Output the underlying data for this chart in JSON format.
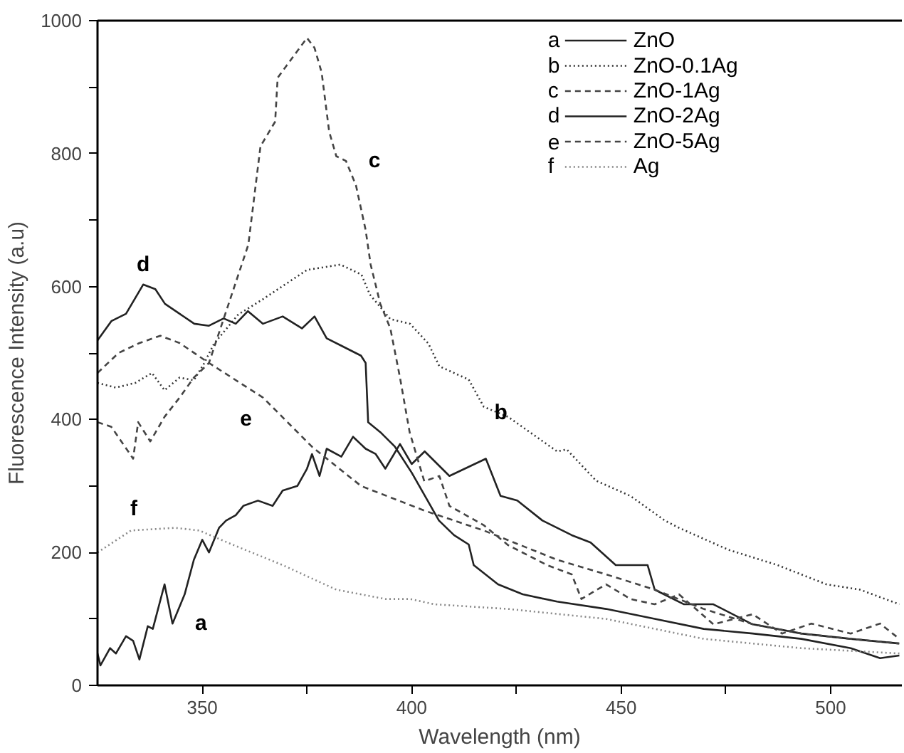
{
  "chart_data": {
    "type": "line",
    "xlabel": "Wavelength (nm)",
    "ylabel": "Fluorescence Intensity (a.u)",
    "xlim": [
      325,
      517
    ],
    "ylim": [
      0,
      1000
    ],
    "xticks": [
      350,
      {
        "value": 375,
        "label": null
      },
      400,
      {
        "value": 425,
        "label": null
      },
      450,
      {
        "value": 475,
        "label": null
      },
      500
    ],
    "yticks": [
      0,
      {
        "value": 100,
        "label": null
      },
      200,
      {
        "value": 300,
        "label": null
      },
      400,
      {
        "value": 500,
        "label": null
      },
      600,
      {
        "value": 700,
        "label": null
      },
      800,
      {
        "value": 900,
        "label": null
      },
      1000
    ],
    "grid": false,
    "legend": "top right",
    "marker": "none",
    "series": [
      {
        "name": "ZnO",
        "color": "#222222",
        "line_style": "solid",
        "x": [
          325,
          325.7,
          328,
          329.4,
          331.8,
          333.5,
          335,
          337,
          338.2,
          341,
          342.9,
          345.8,
          348,
          350,
          351.6,
          354,
          355.7,
          358,
          359.8,
          363.3,
          366.8,
          369.2,
          372.7,
          375,
          376.2,
          378,
          379.7,
          383.2,
          386,
          389,
          391.4,
          393.7,
          397.2,
          400,
          403.1,
          409,
          417.7,
          421.2,
          425.2,
          431.2,
          438.2,
          442.7,
          448.7,
          456.3,
          458,
          465,
          472,
          481.3,
          493,
          504.8,
          516.3
        ],
        "values": [
          48,
          30,
          56,
          48,
          74,
          67,
          39,
          89,
          85,
          152,
          93,
          137,
          189,
          219,
          200,
          237,
          248,
          256,
          270,
          278,
          270,
          293,
          300,
          326,
          348,
          315,
          356,
          344,
          374,
          356,
          348,
          326,
          363,
          333,
          352,
          315,
          341,
          285,
          278,
          248,
          226,
          215,
          181,
          181,
          144,
          122,
          122,
          92,
          78,
          70,
          63
        ]
      },
      {
        "name": "ZnO-0.1Ag",
        "color": "#333333",
        "line_style": "dotted",
        "x": [
          325,
          329.4,
          334,
          338,
          341,
          344.6,
          348,
          350.5,
          352.8,
          358.6,
          364.5,
          375,
          383,
          388,
          390,
          394.9,
          399.6,
          404,
          406.6,
          413.6,
          417.2,
          423,
          434.7,
          437,
          444,
          452.2,
          460.4,
          463.8,
          475.6,
          487.3,
          499,
          507,
          516.4
        ],
        "values": [
          455,
          448,
          455,
          470,
          444,
          463,
          459,
          485,
          514,
          558,
          581,
          625,
          633,
          618,
          588,
          551,
          544,
          514,
          480,
          460,
          419,
          404,
          352,
          355,
          308,
          285,
          248,
          237,
          204,
          181,
          152,
          144,
          122
        ]
      },
      {
        "name": "ZnO-1Ag",
        "color": "#444444",
        "line_style": "dashed",
        "x": [
          325,
          328.3,
          333.5,
          334.7,
          337.6,
          341,
          344.6,
          348,
          351.6,
          356.3,
          361,
          363.9,
          367.4,
          368,
          371.5,
          375,
          376.8,
          378.5,
          380.3,
          382,
          384.3,
          386.7,
          389,
          390.2,
          392.5,
          394.9,
          397.2,
          399.5,
          403,
          406.6,
          409,
          417.2,
          423,
          432.3,
          438.2,
          440.5,
          446.4,
          452.2,
          458,
          463.8,
          472,
          481.4,
          488.4,
          495.4,
          504.8,
          511.8,
          516.4
        ],
        "values": [
          396,
          389,
          341,
          396,
          367,
          404,
          433,
          463,
          485,
          574,
          663,
          811,
          848,
          914,
          944,
          974,
          959,
          922,
          833,
          796,
          789,
          752,
          685,
          633,
          574,
          537,
          463,
          381,
          307,
          315,
          270,
          241,
          211,
          181,
          167,
          130,
          152,
          130,
          122,
          137,
          92,
          107,
          78,
          93,
          78,
          93,
          70
        ]
      },
      {
        "name": "ZnO-2Ag",
        "color": "#222222",
        "line_style": "solid",
        "x": [
          325,
          328.3,
          331.8,
          335.9,
          338.8,
          341.1,
          344.6,
          348.1,
          351.6,
          355.1,
          358,
          360.9,
          364.5,
          369.2,
          373.8,
          376.8,
          379.7,
          383.2,
          387.9,
          389,
          389.6,
          392.5,
          396,
          400,
          406.5,
          410.1,
          413.6,
          414.8,
          420.6,
          426.5,
          434.7,
          446.4,
          458,
          469.7,
          481.4,
          493,
          504.8,
          511.8,
          516.4
        ],
        "values": [
          519,
          548,
          559,
          603,
          596,
          574,
          559,
          544,
          541,
          552,
          544,
          563,
          544,
          555,
          537,
          555,
          522,
          511,
          496,
          485,
          396,
          381,
          359,
          320,
          248,
          226,
          212,
          181,
          152,
          137,
          126,
          115,
          100,
          85,
          78,
          70,
          56,
          41,
          45
        ]
      },
      {
        "name": "ZnO-5Ag",
        "color": "#444444",
        "line_style": "dashed",
        "x": [
          325,
          330,
          335,
          340,
          344.6,
          351.6,
          364.5,
          376.2,
          387.9,
          403,
          417.2,
          434.7,
          446.4,
          458,
          469.7,
          481.4,
          493,
          504.8,
          516.4
        ],
        "values": [
          470,
          500,
          515,
          526,
          515,
          485,
          433,
          359,
          300,
          263,
          233,
          189,
          167,
          144,
          115,
          92,
          78,
          70,
          63
        ]
      },
      {
        "name": "Ag",
        "color": "#888888",
        "line_style": "dotted",
        "x": [
          325,
          333,
          343.5,
          349.3,
          357.5,
          369.2,
          382,
          393.7,
          399.6,
          405.4,
          423,
          446.4,
          469.7,
          493,
          516.4
        ],
        "values": [
          200,
          233,
          237,
          233,
          211,
          181,
          144,
          130,
          130,
          122,
          115,
          100,
          70,
          56,
          48
        ]
      }
    ],
    "annotations": [
      "a",
      "b",
      "c",
      "d",
      "e",
      "f"
    ]
  }
}
